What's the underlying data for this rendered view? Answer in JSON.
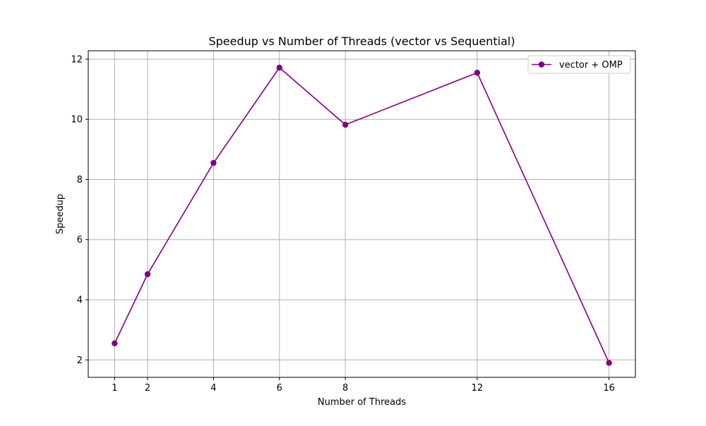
{
  "chart_data": {
    "type": "line",
    "title": "Speedup vs Number of Threads (vector vs Sequential)",
    "xlabel": "Number of Threads",
    "ylabel": "Speedup",
    "x": [
      1,
      2,
      4,
      6,
      8,
      12,
      16
    ],
    "xticks": [
      "1",
      "2",
      "4",
      "6",
      "8",
      "12",
      "16"
    ],
    "xlim": [
      0.2,
      16.8
    ],
    "ylim": [
      1.42,
      12.28
    ],
    "yticks": [
      "2",
      "4",
      "6",
      "8",
      "10",
      "12"
    ],
    "grid": true,
    "legend_position": "top-right",
    "series": [
      {
        "name": "vector + OMP",
        "color": "#800080",
        "marker": "circle",
        "values": [
          2.55,
          4.85,
          8.55,
          11.72,
          9.82,
          11.55,
          1.9
        ]
      }
    ]
  }
}
